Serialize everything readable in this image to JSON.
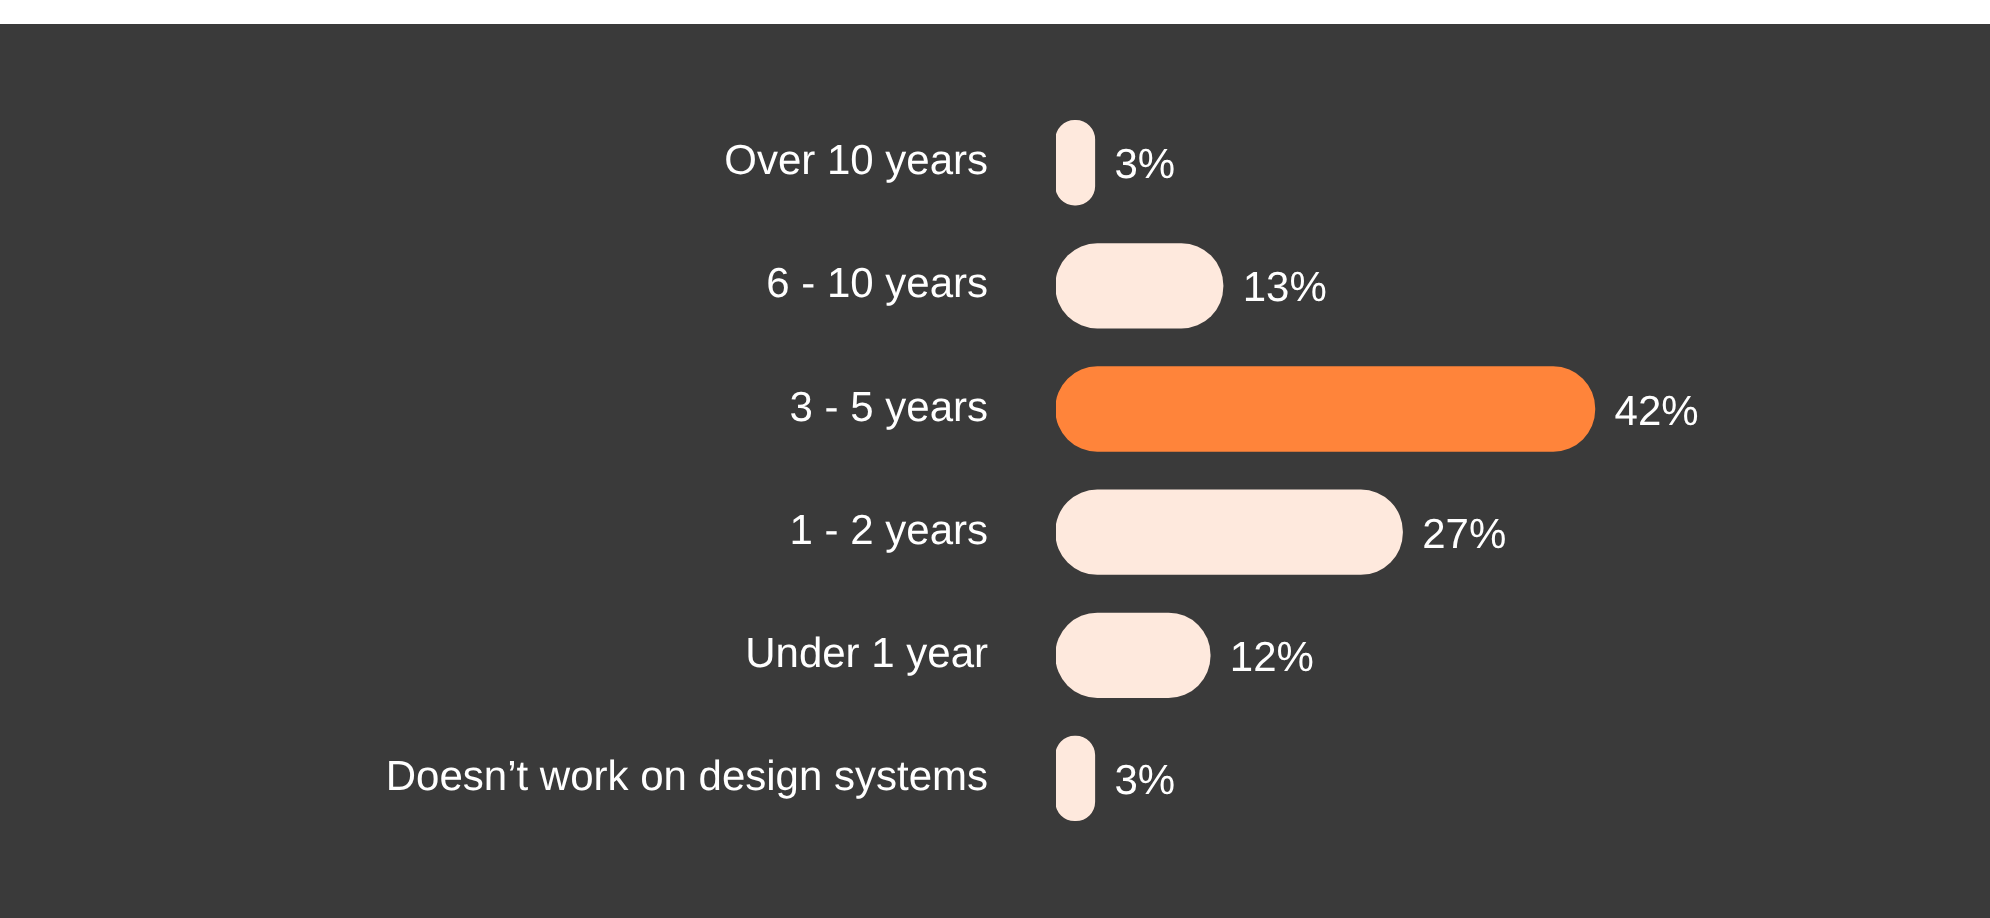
{
  "chart_data": {
    "type": "bar",
    "orientation": "horizontal",
    "categories": [
      "Over 10 years",
      "6 - 10 years",
      "3 - 5 years",
      "1 - 2 years",
      "Under 1 year",
      "Doesn’t work on design systems"
    ],
    "values": [
      3,
      13,
      42,
      27,
      12,
      3
    ],
    "colors": [
      "#fee9dd",
      "#fee9dd",
      "#ff843a",
      "#fee9dd",
      "#fee9dd",
      "#fee9dd"
    ],
    "value_labels": [
      "3%",
      "13%",
      "42%",
      "27%",
      "12%",
      "3%"
    ]
  }
}
